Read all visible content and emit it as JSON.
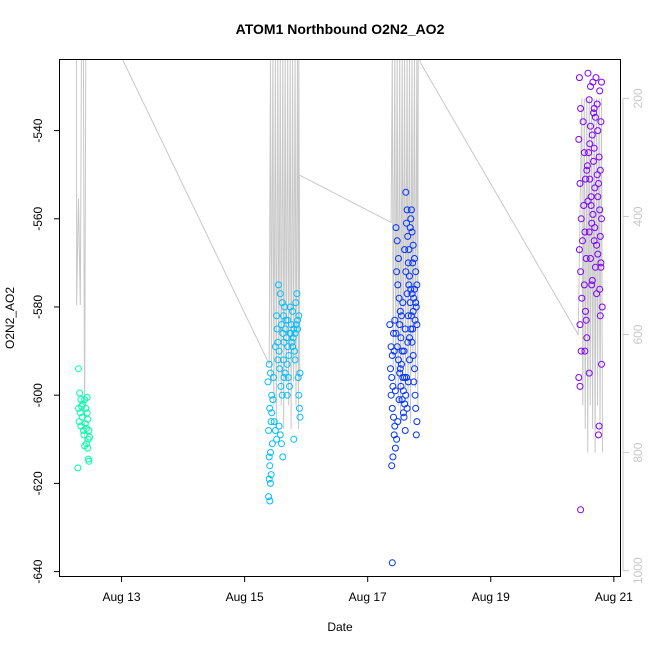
{
  "chart_data": {
    "type": "scatter",
    "title": "ATOM1 Northbound O2N2_AO2",
    "xlabel": "Date",
    "ylabel": "O2N2_AO2",
    "x_ticks": [
      {
        "day": 13,
        "label": "Aug 13"
      },
      {
        "day": 15,
        "label": "Aug 15"
      },
      {
        "day": 17,
        "label": "Aug 17"
      },
      {
        "day": 19,
        "label": "Aug 19"
      },
      {
        "day": 21,
        "label": "Aug 21"
      }
    ],
    "y_ticks": [
      -540,
      -560,
      -580,
      -600,
      -620,
      -640
    ],
    "ylim": [
      -641,
      -524
    ],
    "xlim_days": [
      12.0,
      21.1
    ],
    "secondary_axis": {
      "ticks": [
        200,
        400,
        600,
        800,
        1000
      ],
      "ylim": [
        1009,
        135
      ],
      "color": "#c8c8c8",
      "overlay_color": "#c8c8c8"
    },
    "colors": {
      "aug12": "#00ffaa",
      "aug15": "#00bfff",
      "aug17": "#0033ff",
      "aug20": "#7f00ff"
    },
    "series": [
      {
        "color": "#00ffaa",
        "points": [
          [
            12.3,
            -594
          ],
          [
            12.32,
            -599.5
          ],
          [
            12.34,
            -601
          ],
          [
            12.35,
            -602.5
          ],
          [
            12.3,
            -603
          ],
          [
            12.33,
            -604
          ],
          [
            12.36,
            -605
          ],
          [
            12.31,
            -606
          ],
          [
            12.34,
            -607
          ],
          [
            12.38,
            -608
          ],
          [
            12.4,
            -601
          ],
          [
            12.42,
            -603
          ],
          [
            12.44,
            -604
          ],
          [
            12.45,
            -605.5
          ],
          [
            12.41,
            -606.5
          ],
          [
            12.43,
            -607.5
          ],
          [
            12.47,
            -608
          ],
          [
            12.39,
            -609
          ],
          [
            12.46,
            -610
          ],
          [
            12.43,
            -611
          ],
          [
            12.48,
            -609.5
          ],
          [
            12.45,
            -612
          ],
          [
            12.4,
            -611.5
          ],
          [
            12.46,
            -614.5
          ],
          [
            12.47,
            -615
          ],
          [
            12.29,
            -616.5
          ],
          [
            12.37,
            -602
          ],
          [
            12.44,
            -600.5
          ]
        ]
      },
      {
        "color": "#00bfff",
        "points": [
          [
            15.4,
            -593
          ],
          [
            15.42,
            -595
          ],
          [
            15.38,
            -597
          ],
          [
            15.44,
            -600
          ],
          [
            15.41,
            -603
          ],
          [
            15.43,
            -606
          ],
          [
            15.39,
            -608
          ],
          [
            15.45,
            -611
          ],
          [
            15.42,
            -613
          ],
          [
            15.4,
            -614
          ],
          [
            15.41,
            -616
          ],
          [
            15.43,
            -618
          ],
          [
            15.4,
            -619
          ],
          [
            15.42,
            -620
          ],
          [
            15.39,
            -623
          ],
          [
            15.41,
            -624
          ],
          [
            15.44,
            -604
          ],
          [
            15.46,
            -601
          ],
          [
            15.47,
            -596
          ],
          [
            15.5,
            -589
          ],
          [
            15.52,
            -582
          ],
          [
            15.55,
            -575
          ],
          [
            15.58,
            -577
          ],
          [
            15.53,
            -585
          ],
          [
            15.56,
            -590
          ],
          [
            15.54,
            -592
          ],
          [
            15.57,
            -594
          ],
          [
            15.59,
            -598
          ],
          [
            15.61,
            -600
          ],
          [
            15.6,
            -584
          ],
          [
            15.62,
            -586
          ],
          [
            15.64,
            -588
          ],
          [
            15.63,
            -582
          ],
          [
            15.65,
            -580
          ],
          [
            15.67,
            -583
          ],
          [
            15.66,
            -585
          ],
          [
            15.68,
            -587
          ],
          [
            15.7,
            -589
          ],
          [
            15.72,
            -591
          ],
          [
            15.69,
            -593
          ],
          [
            15.71,
            -596
          ],
          [
            15.73,
            -598
          ],
          [
            15.74,
            -580
          ],
          [
            15.76,
            -584
          ],
          [
            15.75,
            -586
          ],
          [
            15.77,
            -588
          ],
          [
            15.78,
            -581
          ],
          [
            15.8,
            -585
          ],
          [
            15.79,
            -587
          ],
          [
            15.81,
            -590
          ],
          [
            15.82,
            -586
          ],
          [
            15.84,
            -584
          ],
          [
            15.83,
            -579
          ],
          [
            15.85,
            -577
          ],
          [
            15.86,
            -583
          ],
          [
            15.87,
            -596
          ],
          [
            15.88,
            -600
          ],
          [
            15.89,
            -603
          ],
          [
            15.9,
            -605
          ],
          [
            15.8,
            -610
          ],
          [
            15.56,
            -607
          ],
          [
            15.58,
            -609
          ],
          [
            15.6,
            -611
          ],
          [
            15.62,
            -614
          ],
          [
            15.48,
            -606
          ],
          [
            15.5,
            -608
          ],
          [
            15.52,
            -610
          ],
          [
            15.63,
            -592
          ],
          [
            15.66,
            -595
          ],
          [
            15.7,
            -583
          ],
          [
            15.74,
            -586
          ],
          [
            15.78,
            -589
          ],
          [
            15.82,
            -592
          ],
          [
            15.86,
            -585
          ],
          [
            15.88,
            -582
          ],
          [
            15.9,
            -595
          ],
          [
            15.54,
            -588
          ],
          [
            15.61,
            -579
          ],
          [
            15.64,
            -596
          ],
          [
            15.69,
            -600
          ]
        ]
      },
      {
        "color": "#0033ff",
        "points": [
          [
            17.36,
            -584
          ],
          [
            17.38,
            -589
          ],
          [
            17.4,
            -591
          ],
          [
            17.37,
            -594
          ],
          [
            17.39,
            -596
          ],
          [
            17.41,
            -598
          ],
          [
            17.38,
            -600
          ],
          [
            17.4,
            -603
          ],
          [
            17.42,
            -605
          ],
          [
            17.44,
            -607
          ],
          [
            17.43,
            -609
          ],
          [
            17.45,
            -612
          ],
          [
            17.41,
            -614
          ],
          [
            17.39,
            -616
          ],
          [
            17.4,
            -638
          ],
          [
            17.46,
            -562
          ],
          [
            17.48,
            -565
          ],
          [
            17.5,
            -569
          ],
          [
            17.47,
            -572
          ],
          [
            17.49,
            -575
          ],
          [
            17.51,
            -578
          ],
          [
            17.53,
            -581
          ],
          [
            17.52,
            -584
          ],
          [
            17.54,
            -587
          ],
          [
            17.56,
            -590
          ],
          [
            17.55,
            -593
          ],
          [
            17.57,
            -596
          ],
          [
            17.58,
            -599
          ],
          [
            17.6,
            -602
          ],
          [
            17.59,
            -605
          ],
          [
            17.61,
            -608
          ],
          [
            17.62,
            -554
          ],
          [
            17.64,
            -558
          ],
          [
            17.63,
            -561
          ],
          [
            17.65,
            -564
          ],
          [
            17.67,
            -567
          ],
          [
            17.66,
            -570
          ],
          [
            17.68,
            -573
          ],
          [
            17.7,
            -576
          ],
          [
            17.69,
            -579
          ],
          [
            17.71,
            -582
          ],
          [
            17.73,
            -585
          ],
          [
            17.72,
            -588
          ],
          [
            17.74,
            -591
          ],
          [
            17.76,
            -594
          ],
          [
            17.75,
            -597
          ],
          [
            17.77,
            -600
          ],
          [
            17.78,
            -603
          ],
          [
            17.8,
            -606
          ],
          [
            17.79,
            -609
          ],
          [
            17.44,
            -583
          ],
          [
            17.46,
            -586
          ],
          [
            17.48,
            -589
          ],
          [
            17.5,
            -592
          ],
          [
            17.52,
            -595
          ],
          [
            17.54,
            -598
          ],
          [
            17.56,
            -601
          ],
          [
            17.58,
            -604
          ],
          [
            17.6,
            -567
          ],
          [
            17.62,
            -572
          ],
          [
            17.64,
            -577
          ],
          [
            17.66,
            -582
          ],
          [
            17.68,
            -587
          ],
          [
            17.7,
            -560
          ],
          [
            17.72,
            -563
          ],
          [
            17.74,
            -566
          ],
          [
            17.76,
            -569
          ],
          [
            17.78,
            -572
          ],
          [
            17.8,
            -575
          ],
          [
            17.79,
            -580
          ],
          [
            17.77,
            -583
          ],
          [
            17.75,
            -578
          ],
          [
            17.73,
            -570
          ],
          [
            17.71,
            -558
          ],
          [
            17.69,
            -562
          ],
          [
            17.67,
            -575
          ],
          [
            17.65,
            -588
          ],
          [
            17.63,
            -596
          ],
          [
            17.61,
            -585
          ],
          [
            17.59,
            -590
          ],
          [
            17.57,
            -579
          ],
          [
            17.55,
            -582
          ],
          [
            17.53,
            -594
          ],
          [
            17.51,
            -601
          ],
          [
            17.49,
            -606
          ],
          [
            17.47,
            -610
          ],
          [
            17.45,
            -599
          ],
          [
            17.43,
            -590
          ],
          [
            17.42,
            -586
          ],
          [
            17.8,
            -584
          ],
          [
            17.78,
            -579
          ],
          [
            17.76,
            -576
          ],
          [
            17.74,
            -581
          ],
          [
            17.72,
            -577
          ],
          [
            17.7,
            -585
          ],
          [
            17.68,
            -592
          ],
          [
            17.66,
            -597
          ],
          [
            17.64,
            -603
          ],
          [
            17.62,
            -600
          ],
          [
            17.6,
            -596
          ]
        ]
      },
      {
        "color": "#7f00ff",
        "points": [
          [
            20.44,
            -528
          ],
          [
            20.46,
            -535
          ],
          [
            20.43,
            -542
          ],
          [
            20.45,
            -552
          ],
          [
            20.47,
            -560
          ],
          [
            20.44,
            -567
          ],
          [
            20.46,
            -572
          ],
          [
            20.48,
            -578
          ],
          [
            20.45,
            -584
          ],
          [
            20.47,
            -590
          ],
          [
            20.43,
            -596
          ],
          [
            20.45,
            -598
          ],
          [
            20.46,
            -626
          ],
          [
            20.5,
            -538
          ],
          [
            20.52,
            -545
          ],
          [
            20.54,
            -551
          ],
          [
            20.51,
            -557
          ],
          [
            20.53,
            -563
          ],
          [
            20.55,
            -569
          ],
          [
            20.52,
            -575
          ],
          [
            20.54,
            -581
          ],
          [
            20.56,
            -587
          ],
          [
            20.58,
            -527
          ],
          [
            20.6,
            -533
          ],
          [
            20.62,
            -539
          ],
          [
            20.59,
            -545
          ],
          [
            20.61,
            -551
          ],
          [
            20.63,
            -557
          ],
          [
            20.6,
            -563
          ],
          [
            20.62,
            -569
          ],
          [
            20.64,
            -575
          ],
          [
            20.66,
            -529
          ],
          [
            20.68,
            -535
          ],
          [
            20.65,
            -541
          ],
          [
            20.67,
            -547
          ],
          [
            20.69,
            -553
          ],
          [
            20.66,
            -559
          ],
          [
            20.68,
            -565
          ],
          [
            20.7,
            -571
          ],
          [
            20.72,
            -577
          ],
          [
            20.71,
            -528
          ],
          [
            20.73,
            -534
          ],
          [
            20.74,
            -540
          ],
          [
            20.76,
            -546
          ],
          [
            20.75,
            -552
          ],
          [
            20.77,
            -558
          ],
          [
            20.78,
            -564
          ],
          [
            20.79,
            -570
          ],
          [
            20.77,
            -576
          ],
          [
            20.78,
            -582
          ],
          [
            20.8,
            -529
          ],
          [
            20.79,
            -538
          ],
          [
            20.78,
            -549
          ],
          [
            20.8,
            -560
          ],
          [
            20.79,
            -571
          ],
          [
            20.81,
            -580
          ],
          [
            20.8,
            -593
          ],
          [
            20.76,
            -607
          ],
          [
            20.75,
            -609
          ],
          [
            20.57,
            -548
          ],
          [
            20.63,
            -555
          ],
          [
            20.69,
            -562
          ],
          [
            20.74,
            -568
          ],
          [
            20.65,
            -574
          ],
          [
            20.7,
            -537
          ],
          [
            20.61,
            -543
          ],
          [
            20.56,
            -549
          ],
          [
            20.58,
            -556
          ],
          [
            20.64,
            -561
          ],
          [
            20.72,
            -566
          ],
          [
            20.77,
            -531
          ],
          [
            20.67,
            -536
          ],
          [
            20.55,
            -583
          ],
          [
            20.53,
            -590
          ],
          [
            20.6,
            -595
          ],
          [
            20.73,
            -550
          ],
          [
            20.62,
            -530
          ],
          [
            20.68,
            -544
          ],
          [
            20.74,
            -555
          ],
          [
            20.49,
            -565
          ]
        ]
      }
    ]
  }
}
